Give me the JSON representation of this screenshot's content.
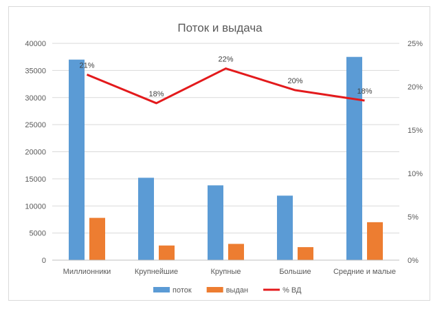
{
  "chart_data": {
    "type": "bar",
    "title": "Поток и выдача",
    "categories": [
      "Миллионники",
      "Крупнейшие",
      "Крупные",
      "Большие",
      "Средние и малые"
    ],
    "series": [
      {
        "name": "поток",
        "type": "bar",
        "axis": "left",
        "color": "#5b9bd5",
        "values": [
          37000,
          15200,
          13800,
          11900,
          37500
        ]
      },
      {
        "name": "выдан",
        "type": "bar",
        "axis": "left",
        "color": "#ed7d31",
        "values": [
          7800,
          2700,
          3000,
          2400,
          7000
        ]
      },
      {
        "name": "% ВД",
        "type": "line",
        "axis": "right",
        "color": "#e31a1c",
        "values": [
          0.214,
          0.181,
          0.221,
          0.196,
          0.184
        ],
        "data_labels": [
          "21%",
          "18%",
          "22%",
          "20%",
          "18%"
        ]
      }
    ],
    "y_left": {
      "min": 0,
      "max": 40000,
      "ticks": [
        "0",
        "5000",
        "10000",
        "15000",
        "20000",
        "25000",
        "30000",
        "35000",
        "40000"
      ]
    },
    "y_right": {
      "min": 0,
      "max": 0.25,
      "ticks": [
        "0%",
        "5%",
        "10%",
        "15%",
        "20%",
        "25%"
      ]
    },
    "grid": true,
    "legend": "bottom"
  }
}
